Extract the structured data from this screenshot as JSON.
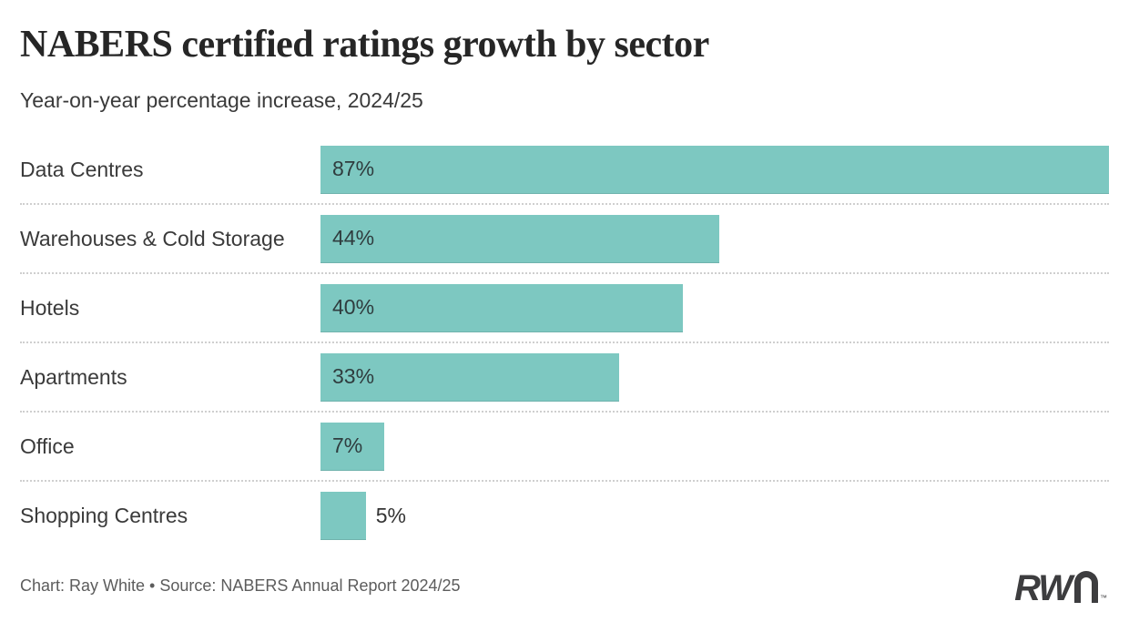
{
  "header": {
    "title": "NABERS certified ratings growth by sector",
    "subtitle": "Year-on-year percentage increase, 2024/25"
  },
  "chart_data": {
    "type": "bar",
    "orientation": "horizontal",
    "title": "NABERS certified ratings growth by sector",
    "subtitle": "Year-on-year percentage increase, 2024/25",
    "categories": [
      "Data Centres",
      "Warehouses & Cold Storage",
      "Hotels",
      "Apartments",
      "Office",
      "Shopping Centres"
    ],
    "values": [
      87,
      44,
      40,
      33,
      7,
      5
    ],
    "value_labels": [
      "87%",
      "44%",
      "40%",
      "33%",
      "7%",
      "5%"
    ],
    "value_label_positions": [
      "inside",
      "inside",
      "inside",
      "inside",
      "inside",
      "outside"
    ],
    "unit": "%",
    "xlabel": "",
    "ylabel": "",
    "xlim": [
      0,
      87
    ],
    "bar_color": "#7dc8c1",
    "grid": "dotted-row-separators",
    "legend": "none"
  },
  "footer": {
    "credit": "Chart: Ray White  •  Source: NABERS Annual Report 2024/25",
    "logo_rw": "RW",
    "logo_tm": "™"
  },
  "colors": {
    "bar": "#7dc8c1",
    "title": "#262626",
    "subtitle": "#3a3a3a",
    "category_label": "#3a3a3a",
    "value_label": "#2f3c3e",
    "separator": "#cfcfcf",
    "credit": "#5c5c5c",
    "logo": "#3d3d3f",
    "background": "#ffffff"
  }
}
